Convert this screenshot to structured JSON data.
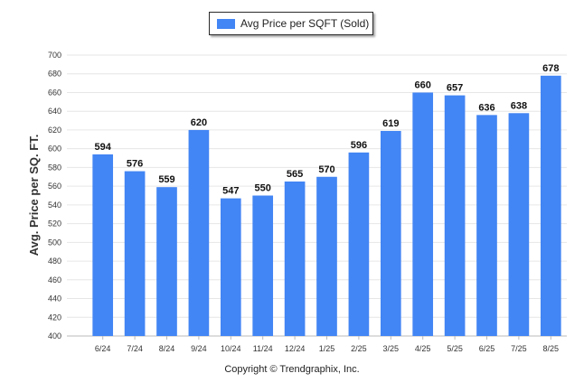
{
  "legend": {
    "label": "Avg Price per SQFT (Sold)"
  },
  "footer": {
    "text": "Copyright © Trendgraphix, Inc."
  },
  "chart_data": {
    "type": "bar",
    "categories": [
      "6/24",
      "7/24",
      "8/24",
      "9/24",
      "10/24",
      "11/24",
      "12/24",
      "1/25",
      "2/25",
      "3/25",
      "4/25",
      "5/25",
      "6/25",
      "7/25",
      "8/25"
    ],
    "series": [
      {
        "name": "Avg Price per SQFT (Sold)",
        "values": [
          594,
          576,
          559,
          620,
          547,
          550,
          565,
          570,
          596,
          619,
          660,
          657,
          636,
          638,
          678
        ],
        "color": "#4285f4"
      }
    ],
    "ylabel": "Avg. Price per SQ. FT.",
    "xlabel": "",
    "ylim": [
      400,
      700
    ],
    "yticks": [
      400,
      420,
      440,
      460,
      480,
      500,
      520,
      540,
      560,
      580,
      600,
      620,
      640,
      660,
      680,
      700
    ],
    "grid": true,
    "legend_position": "top-center",
    "data_labels": true
  }
}
